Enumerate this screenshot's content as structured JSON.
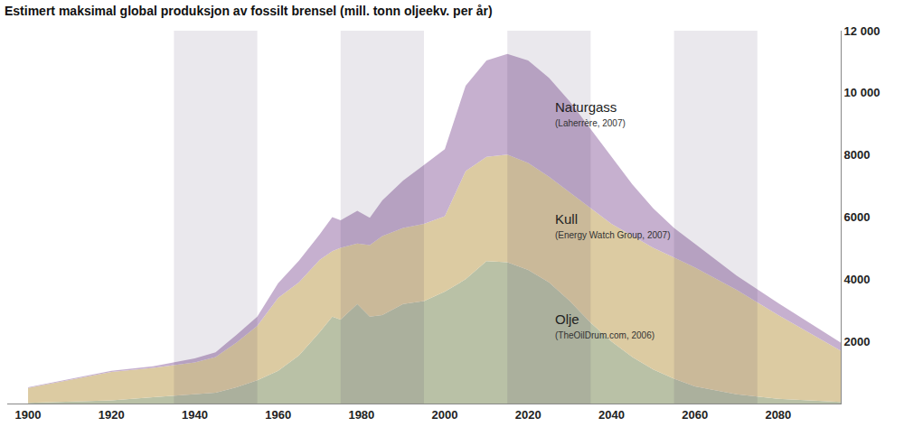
{
  "chart_data": {
    "type": "area",
    "title": "Estimert maksimal global produksjon av fossilt brensel (mill. tonn oljeekv. per år)",
    "stacked": true,
    "grid": true,
    "x": [
      1900,
      1910,
      1920,
      1930,
      1940,
      1945,
      1950,
      1955,
      1960,
      1965,
      1970,
      1973,
      1975,
      1979,
      1982,
      1985,
      1990,
      1995,
      2000,
      2005,
      2010,
      2015,
      2020,
      2025,
      2030,
      2035,
      2040,
      2045,
      2050,
      2055,
      2060,
      2070,
      2080,
      2095
    ],
    "series": [
      {
        "name": "Olje",
        "color": "#b9c1a6",
        "values": [
          20,
          50,
          100,
          200,
          300,
          350,
          520,
          750,
          1050,
          1550,
          2300,
          2800,
          2700,
          3200,
          2800,
          2850,
          3200,
          3300,
          3600,
          4000,
          4580,
          4550,
          4300,
          3900,
          3300,
          2600,
          2000,
          1500,
          1100,
          800,
          550,
          300,
          150,
          50
        ]
      },
      {
        "name": "Kull",
        "color": "#dccba2",
        "values": [
          480,
          700,
          920,
          950,
          1020,
          1150,
          1440,
          1750,
          2350,
          2350,
          2330,
          2100,
          2310,
          1950,
          2300,
          2540,
          2450,
          2480,
          2430,
          3480,
          3360,
          3465,
          3440,
          3400,
          3490,
          3700,
          3780,
          3900,
          3910,
          3900,
          3830,
          3360,
          2700,
          1650
        ]
      },
      {
        "name": "Naturgass",
        "color": "#c6b0cf",
        "values": [
          20,
          30,
          30,
          50,
          130,
          150,
          250,
          300,
          470,
          700,
          820,
          1100,
          890,
          1050,
          880,
          1150,
          1530,
          1900,
          2160,
          2750,
          3100,
          3235,
          3300,
          3180,
          2930,
          2530,
          2160,
          1650,
          1270,
          950,
          760,
          460,
          380,
          260
        ]
      }
    ],
    "annotations": [
      "(TheOilDrum.com, 2006)",
      "(Energy Watch Group, 2007)",
      "(Laherrère, 2007)"
    ],
    "xlim": [
      1895,
      2095
    ],
    "xticks": [
      1900,
      1920,
      1940,
      1960,
      1980,
      2000,
      2020,
      2040,
      2060,
      2080
    ],
    "ylim": [
      0,
      12000
    ],
    "yticks": [
      {
        "value": 2000,
        "label": "2000"
      },
      {
        "value": 4000,
        "label": "4000"
      },
      {
        "value": 6000,
        "label": "6000"
      },
      {
        "value": 8000,
        "label": "8000"
      },
      {
        "value": 10000,
        "label": "10 000"
      },
      {
        "value": 12000,
        "label": "12 000"
      }
    ]
  }
}
